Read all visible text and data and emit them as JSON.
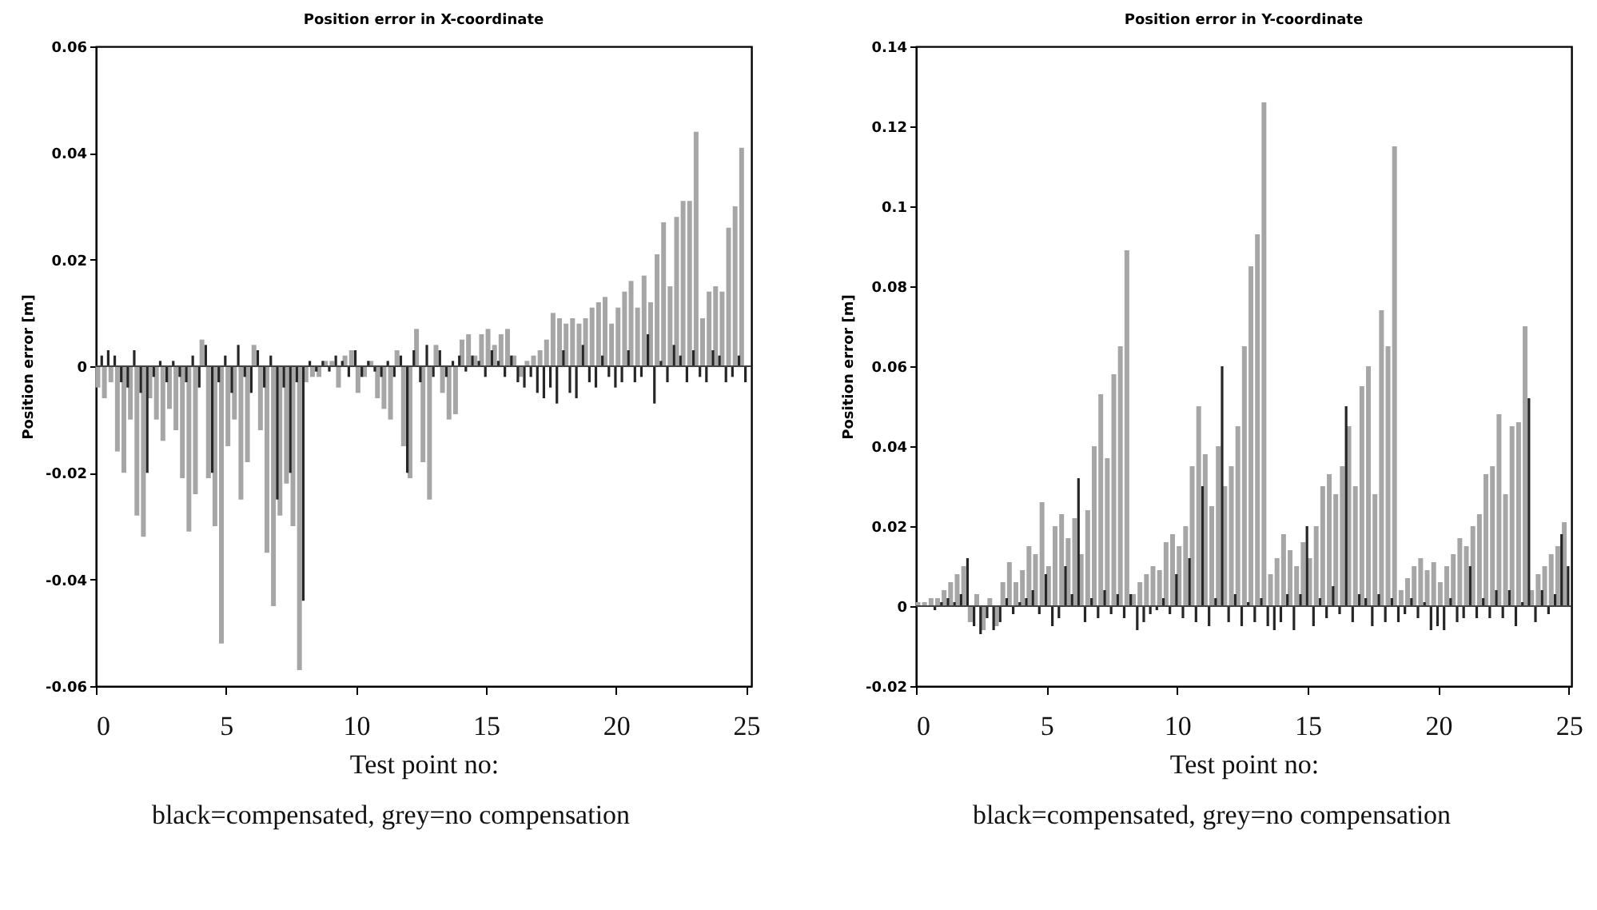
{
  "chart_data": [
    {
      "type": "bar",
      "title": "Position error in X-coordinate",
      "xlabel": "Test point no:",
      "ylabel": "Position error [m]",
      "annotations": [
        "black=compensated, grey=no compensation"
      ],
      "x": [
        0.125,
        0.375,
        0.625,
        0.875,
        1.125,
        1.375,
        1.625,
        1.875,
        2.125,
        2.375,
        2.625,
        2.875,
        3.125,
        3.375,
        3.625,
        3.875,
        4.125,
        4.375,
        4.625,
        4.875,
        5.125,
        5.375,
        5.625,
        5.875,
        6.125,
        6.375,
        6.625,
        6.875,
        7.125,
        7.375,
        7.625,
        7.875,
        8.125,
        8.375,
        8.625,
        8.875,
        9.125,
        9.375,
        9.625,
        9.875,
        10.125,
        10.375,
        10.625,
        10.875,
        11.125,
        11.375,
        11.625,
        11.875,
        12.125,
        12.375,
        12.625,
        12.875,
        13.125,
        13.375,
        13.625,
        13.875,
        14.125,
        14.375,
        14.625,
        14.875,
        15.125,
        15.375,
        15.625,
        15.875,
        16.125,
        16.375,
        16.625,
        16.875,
        17.125,
        17.375,
        17.625,
        17.875,
        18.125,
        18.375,
        18.625,
        18.875,
        19.125,
        19.375,
        19.625,
        19.875,
        20.125,
        20.375,
        20.625,
        20.875,
        21.125,
        21.375,
        21.625,
        21.875,
        22.125,
        22.375,
        22.625,
        22.875,
        23.125,
        23.375,
        23.625,
        23.875,
        24.125,
        24.375,
        24.625,
        24.875
      ],
      "series": [
        {
          "color": "#a6a6a6",
          "values": [
            -0.004,
            -0.006,
            -0.003,
            -0.016,
            -0.02,
            -0.01,
            -0.028,
            -0.032,
            -0.006,
            -0.01,
            -0.014,
            -0.008,
            -0.012,
            -0.021,
            -0.031,
            -0.024,
            0.005,
            -0.021,
            -0.03,
            -0.052,
            -0.015,
            -0.01,
            -0.025,
            -0.018,
            0.004,
            -0.012,
            -0.035,
            -0.045,
            -0.028,
            -0.022,
            -0.03,
            -0.057,
            -0.003,
            -0.002,
            -0.002,
            0.001,
            0.001,
            -0.004,
            0.002,
            0.003,
            -0.005,
            -0.002,
            0.001,
            -0.006,
            -0.008,
            -0.01,
            0.003,
            -0.015,
            -0.021,
            0.007,
            -0.018,
            -0.025,
            0.004,
            -0.005,
            -0.01,
            -0.009,
            0.005,
            0.006,
            0.002,
            0.006,
            0.007,
            0.004,
            0.006,
            0.007,
            0.002,
            -0.002,
            0.001,
            0.002,
            0.003,
            0.005,
            0.01,
            0.009,
            0.008,
            0.009,
            0.008,
            0.009,
            0.011,
            0.012,
            0.013,
            0.008,
            0.011,
            0.014,
            0.016,
            0.011,
            0.017,
            0.012,
            0.021,
            0.027,
            0.015,
            0.028,
            0.031,
            0.031,
            0.044,
            0.009,
            0.014,
            0.015,
            0.014,
            0.026,
            0.03,
            0.041
          ]
        },
        {
          "color": "#262626",
          "values": [
            0.002,
            0.003,
            0.002,
            -0.003,
            -0.004,
            0.003,
            -0.005,
            -0.02,
            -0.002,
            0.001,
            -0.003,
            0.001,
            -0.002,
            -0.003,
            0.002,
            -0.004,
            0.004,
            -0.02,
            -0.003,
            0.002,
            -0.005,
            0.004,
            -0.002,
            -0.005,
            0.003,
            -0.004,
            0.002,
            -0.025,
            -0.004,
            -0.02,
            -0.003,
            -0.044,
            0.001,
            -0.001,
            0.001,
            -0.001,
            0.002,
            0.001,
            -0.002,
            0.003,
            -0.002,
            0.001,
            -0.001,
            -0.002,
            0.001,
            -0.002,
            0.002,
            -0.02,
            0.003,
            -0.003,
            0.004,
            -0.002,
            0.003,
            -0.002,
            0.001,
            0.002,
            -0.001,
            0.002,
            0.001,
            -0.002,
            0.003,
            0.001,
            -0.002,
            0.002,
            -0.003,
            -0.004,
            -0.002,
            -0.005,
            -0.006,
            -0.004,
            -0.007,
            0.003,
            -0.005,
            -0.006,
            0.004,
            -0.003,
            -0.004,
            0.002,
            -0.002,
            -0.004,
            -0.003,
            0.003,
            -0.003,
            -0.002,
            0.006,
            -0.007,
            0.001,
            -0.003,
            0.004,
            0.002,
            -0.003,
            0.003,
            -0.002,
            -0.003,
            0.003,
            0.002,
            -0.003,
            -0.002,
            0.002,
            -0.003
          ]
        }
      ],
      "xlim": [
        0,
        25.2
      ],
      "xticks": [
        0,
        5,
        10,
        15,
        20,
        25
      ],
      "ylim": [
        -0.06,
        0.06
      ],
      "yticks": [
        -0.06,
        -0.04,
        -0.02,
        0,
        0.02,
        0.04,
        0.06
      ]
    },
    {
      "type": "bar",
      "title": "Position error in Y-coordinate",
      "xlabel": "Test point no:",
      "ylabel": "Position error [m]",
      "annotations": [
        "black=compensated, grey=no compensation"
      ],
      "x": [
        0.125,
        0.375,
        0.625,
        0.875,
        1.125,
        1.375,
        1.625,
        1.875,
        2.125,
        2.375,
        2.625,
        2.875,
        3.125,
        3.375,
        3.625,
        3.875,
        4.125,
        4.375,
        4.625,
        4.875,
        5.125,
        5.375,
        5.625,
        5.875,
        6.125,
        6.375,
        6.625,
        6.875,
        7.125,
        7.375,
        7.625,
        7.875,
        8.125,
        8.375,
        8.625,
        8.875,
        9.125,
        9.375,
        9.625,
        9.875,
        10.125,
        10.375,
        10.625,
        10.875,
        11.125,
        11.375,
        11.625,
        11.875,
        12.125,
        12.375,
        12.625,
        12.875,
        13.125,
        13.375,
        13.625,
        13.875,
        14.125,
        14.375,
        14.625,
        14.875,
        15.125,
        15.375,
        15.625,
        15.875,
        16.125,
        16.375,
        16.625,
        16.875,
        17.125,
        17.375,
        17.625,
        17.875,
        18.125,
        18.375,
        18.625,
        18.875,
        19.125,
        19.375,
        19.625,
        19.875,
        20.125,
        20.375,
        20.625,
        20.875,
        21.125,
        21.375,
        21.625,
        21.875,
        22.125,
        22.375,
        22.625,
        22.875,
        23.125,
        23.375,
        23.625,
        23.875,
        24.125,
        24.375,
        24.625,
        24.875
      ],
      "series": [
        {
          "color": "#a6a6a6",
          "values": [
            0.001,
            0.001,
            0.002,
            0.002,
            0.004,
            0.006,
            0.008,
            0.01,
            -0.004,
            0.003,
            -0.006,
            0.002,
            -0.005,
            0.006,
            0.011,
            0.006,
            0.009,
            0.015,
            0.013,
            0.026,
            0.01,
            0.02,
            0.023,
            0.017,
            0.022,
            0.013,
            0.024,
            0.04,
            0.053,
            0.037,
            0.058,
            0.065,
            0.089,
            0.003,
            0.006,
            0.008,
            0.01,
            0.009,
            0.016,
            0.018,
            0.015,
            0.02,
            0.035,
            0.05,
            0.038,
            0.025,
            0.04,
            0.03,
            0.035,
            0.045,
            0.065,
            0.085,
            0.093,
            0.126,
            0.008,
            0.012,
            0.018,
            0.014,
            0.01,
            0.016,
            0.012,
            0.02,
            0.03,
            0.033,
            0.028,
            0.035,
            0.045,
            0.03,
            0.055,
            0.06,
            0.028,
            0.074,
            0.065,
            0.115,
            0.004,
            0.007,
            0.01,
            0.012,
            0.009,
            0.011,
            0.006,
            0.01,
            0.013,
            0.017,
            0.015,
            0.02,
            0.023,
            0.033,
            0.035,
            0.048,
            0.028,
            0.045,
            0.046,
            0.07,
            0.004,
            0.008,
            0.01,
            0.013,
            0.015,
            0.021
          ]
        },
        {
          "color": "#262626",
          "values": [
            0,
            0,
            -0.001,
            0.001,
            0.002,
            0.001,
            0.003,
            0.012,
            -0.005,
            -0.007,
            -0.003,
            -0.006,
            -0.004,
            0.002,
            -0.002,
            0.001,
            0.002,
            0.004,
            -0.002,
            0.008,
            -0.005,
            -0.003,
            0.01,
            0.003,
            0.032,
            -0.004,
            0.002,
            -0.003,
            0.004,
            -0.002,
            0.003,
            -0.003,
            0.003,
            -0.006,
            -0.004,
            -0.002,
            -0.001,
            0.002,
            -0.002,
            0.008,
            -0.003,
            0.012,
            -0.004,
            0.03,
            -0.005,
            0.002,
            0.06,
            -0.004,
            0.003,
            -0.005,
            0.001,
            -0.004,
            0.002,
            -0.005,
            -0.006,
            -0.004,
            0.003,
            -0.006,
            0.003,
            0.02,
            -0.005,
            0.002,
            -0.003,
            0.005,
            -0.002,
            0.05,
            -0.004,
            0.003,
            0.002,
            -0.005,
            0.003,
            -0.004,
            0.002,
            -0.004,
            -0.002,
            0.002,
            -0.003,
            0.001,
            -0.006,
            -0.005,
            -0.006,
            0.002,
            -0.004,
            -0.003,
            0.01,
            -0.003,
            0.002,
            -0.003,
            0.004,
            -0.003,
            0.004,
            -0.005,
            0.001,
            0.052,
            -0.004,
            0.004,
            -0.002,
            0.003,
            0.018,
            0.01
          ]
        }
      ],
      "xlim": [
        0,
        25.1
      ],
      "xticks": [
        0,
        5,
        10,
        15,
        20,
        25
      ],
      "ylim": [
        -0.02,
        0.14
      ],
      "yticks": [
        -0.02,
        0,
        0.02,
        0.04,
        0.06,
        0.08,
        0.1,
        0.12,
        0.14
      ]
    }
  ]
}
